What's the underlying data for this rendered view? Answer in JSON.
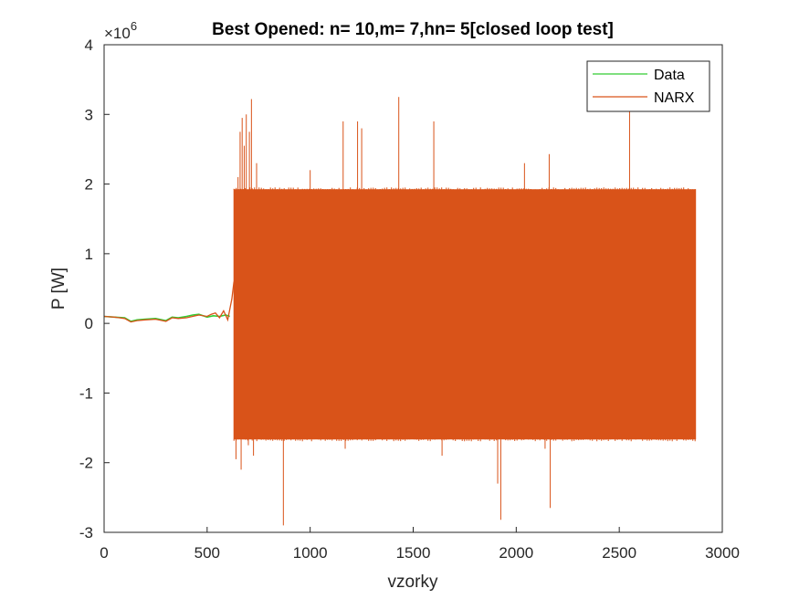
{
  "chart_data": {
    "type": "line",
    "title": "Best Opened: n= 10,m= 7,hn= 5[closed loop test]",
    "xlabel": "vzorky",
    "ylabel": "P [W]",
    "y_exponent_label": "×10",
    "y_exponent_power": "6",
    "xlim": [
      0,
      3000
    ],
    "ylim": [
      -3,
      4
    ],
    "y_scale_factor": 1000000,
    "xticks": [
      0,
      500,
      1000,
      1500,
      2000,
      2500,
      3000
    ],
    "yticks": [
      -3,
      -2,
      -1,
      0,
      1,
      2,
      3,
      4
    ],
    "xtick_labels": [
      "0",
      "500",
      "1000",
      "1500",
      "2000",
      "2500",
      "3000"
    ],
    "ytick_labels": [
      "-3",
      "-2",
      "-1",
      "0",
      "1",
      "2",
      "3",
      "4"
    ],
    "legend_position": "top-right",
    "grid": false,
    "series": [
      {
        "name": "Data",
        "color": "#33cc33",
        "x": [
          0,
          50,
          100,
          130,
          160,
          200,
          250,
          300,
          330,
          360,
          400,
          430,
          460,
          500,
          530,
          560,
          590,
          610
        ],
        "y": [
          0.1,
          0.09,
          0.08,
          0.03,
          0.05,
          0.06,
          0.07,
          0.04,
          0.09,
          0.08,
          0.1,
          0.12,
          0.13,
          0.09,
          0.11,
          0.1,
          0.12,
          0.1
        ]
      },
      {
        "name": "NARX",
        "color": "#d95319",
        "early": {
          "x": [
            0,
            50,
            100,
            130,
            160,
            200,
            250,
            300,
            330,
            360,
            400,
            430,
            460,
            500,
            520,
            540,
            560,
            580,
            600,
            620,
            630
          ],
          "y": [
            0.1,
            0.09,
            0.07,
            0.02,
            0.04,
            0.05,
            0.06,
            0.03,
            0.08,
            0.07,
            0.08,
            0.1,
            0.12,
            0.1,
            0.13,
            0.15,
            0.08,
            0.18,
            0.05,
            0.35,
            0.6
          ]
        },
        "oscillation": {
          "x_start": 630,
          "x_end": 2870,
          "upper": 1.92,
          "lower": -1.66
        },
        "spikes": [
          {
            "x": 640,
            "y": -1.95
          },
          {
            "x": 650,
            "y": 2.1
          },
          {
            "x": 660,
            "y": 2.75
          },
          {
            "x": 665,
            "y": -2.1
          },
          {
            "x": 670,
            "y": 2.95
          },
          {
            "x": 680,
            "y": 2.55
          },
          {
            "x": 690,
            "y": 3.0
          },
          {
            "x": 700,
            "y": -1.75
          },
          {
            "x": 705,
            "y": 2.75
          },
          {
            "x": 715,
            "y": 3.22
          },
          {
            "x": 725,
            "y": -1.9
          },
          {
            "x": 740,
            "y": 2.3
          },
          {
            "x": 870,
            "y": -2.9
          },
          {
            "x": 1000,
            "y": 2.2
          },
          {
            "x": 1160,
            "y": 2.9
          },
          {
            "x": 1170,
            "y": -1.8
          },
          {
            "x": 1230,
            "y": 2.9
          },
          {
            "x": 1250,
            "y": 2.8
          },
          {
            "x": 1430,
            "y": 3.25
          },
          {
            "x": 1600,
            "y": 2.9
          },
          {
            "x": 1640,
            "y": -1.9
          },
          {
            "x": 1910,
            "y": -2.3
          },
          {
            "x": 1925,
            "y": -2.82
          },
          {
            "x": 2040,
            "y": 2.3
          },
          {
            "x": 2140,
            "y": -1.8
          },
          {
            "x": 2160,
            "y": 2.43
          },
          {
            "x": 2165,
            "y": -2.65
          },
          {
            "x": 2550,
            "y": 3.1
          }
        ]
      }
    ]
  }
}
